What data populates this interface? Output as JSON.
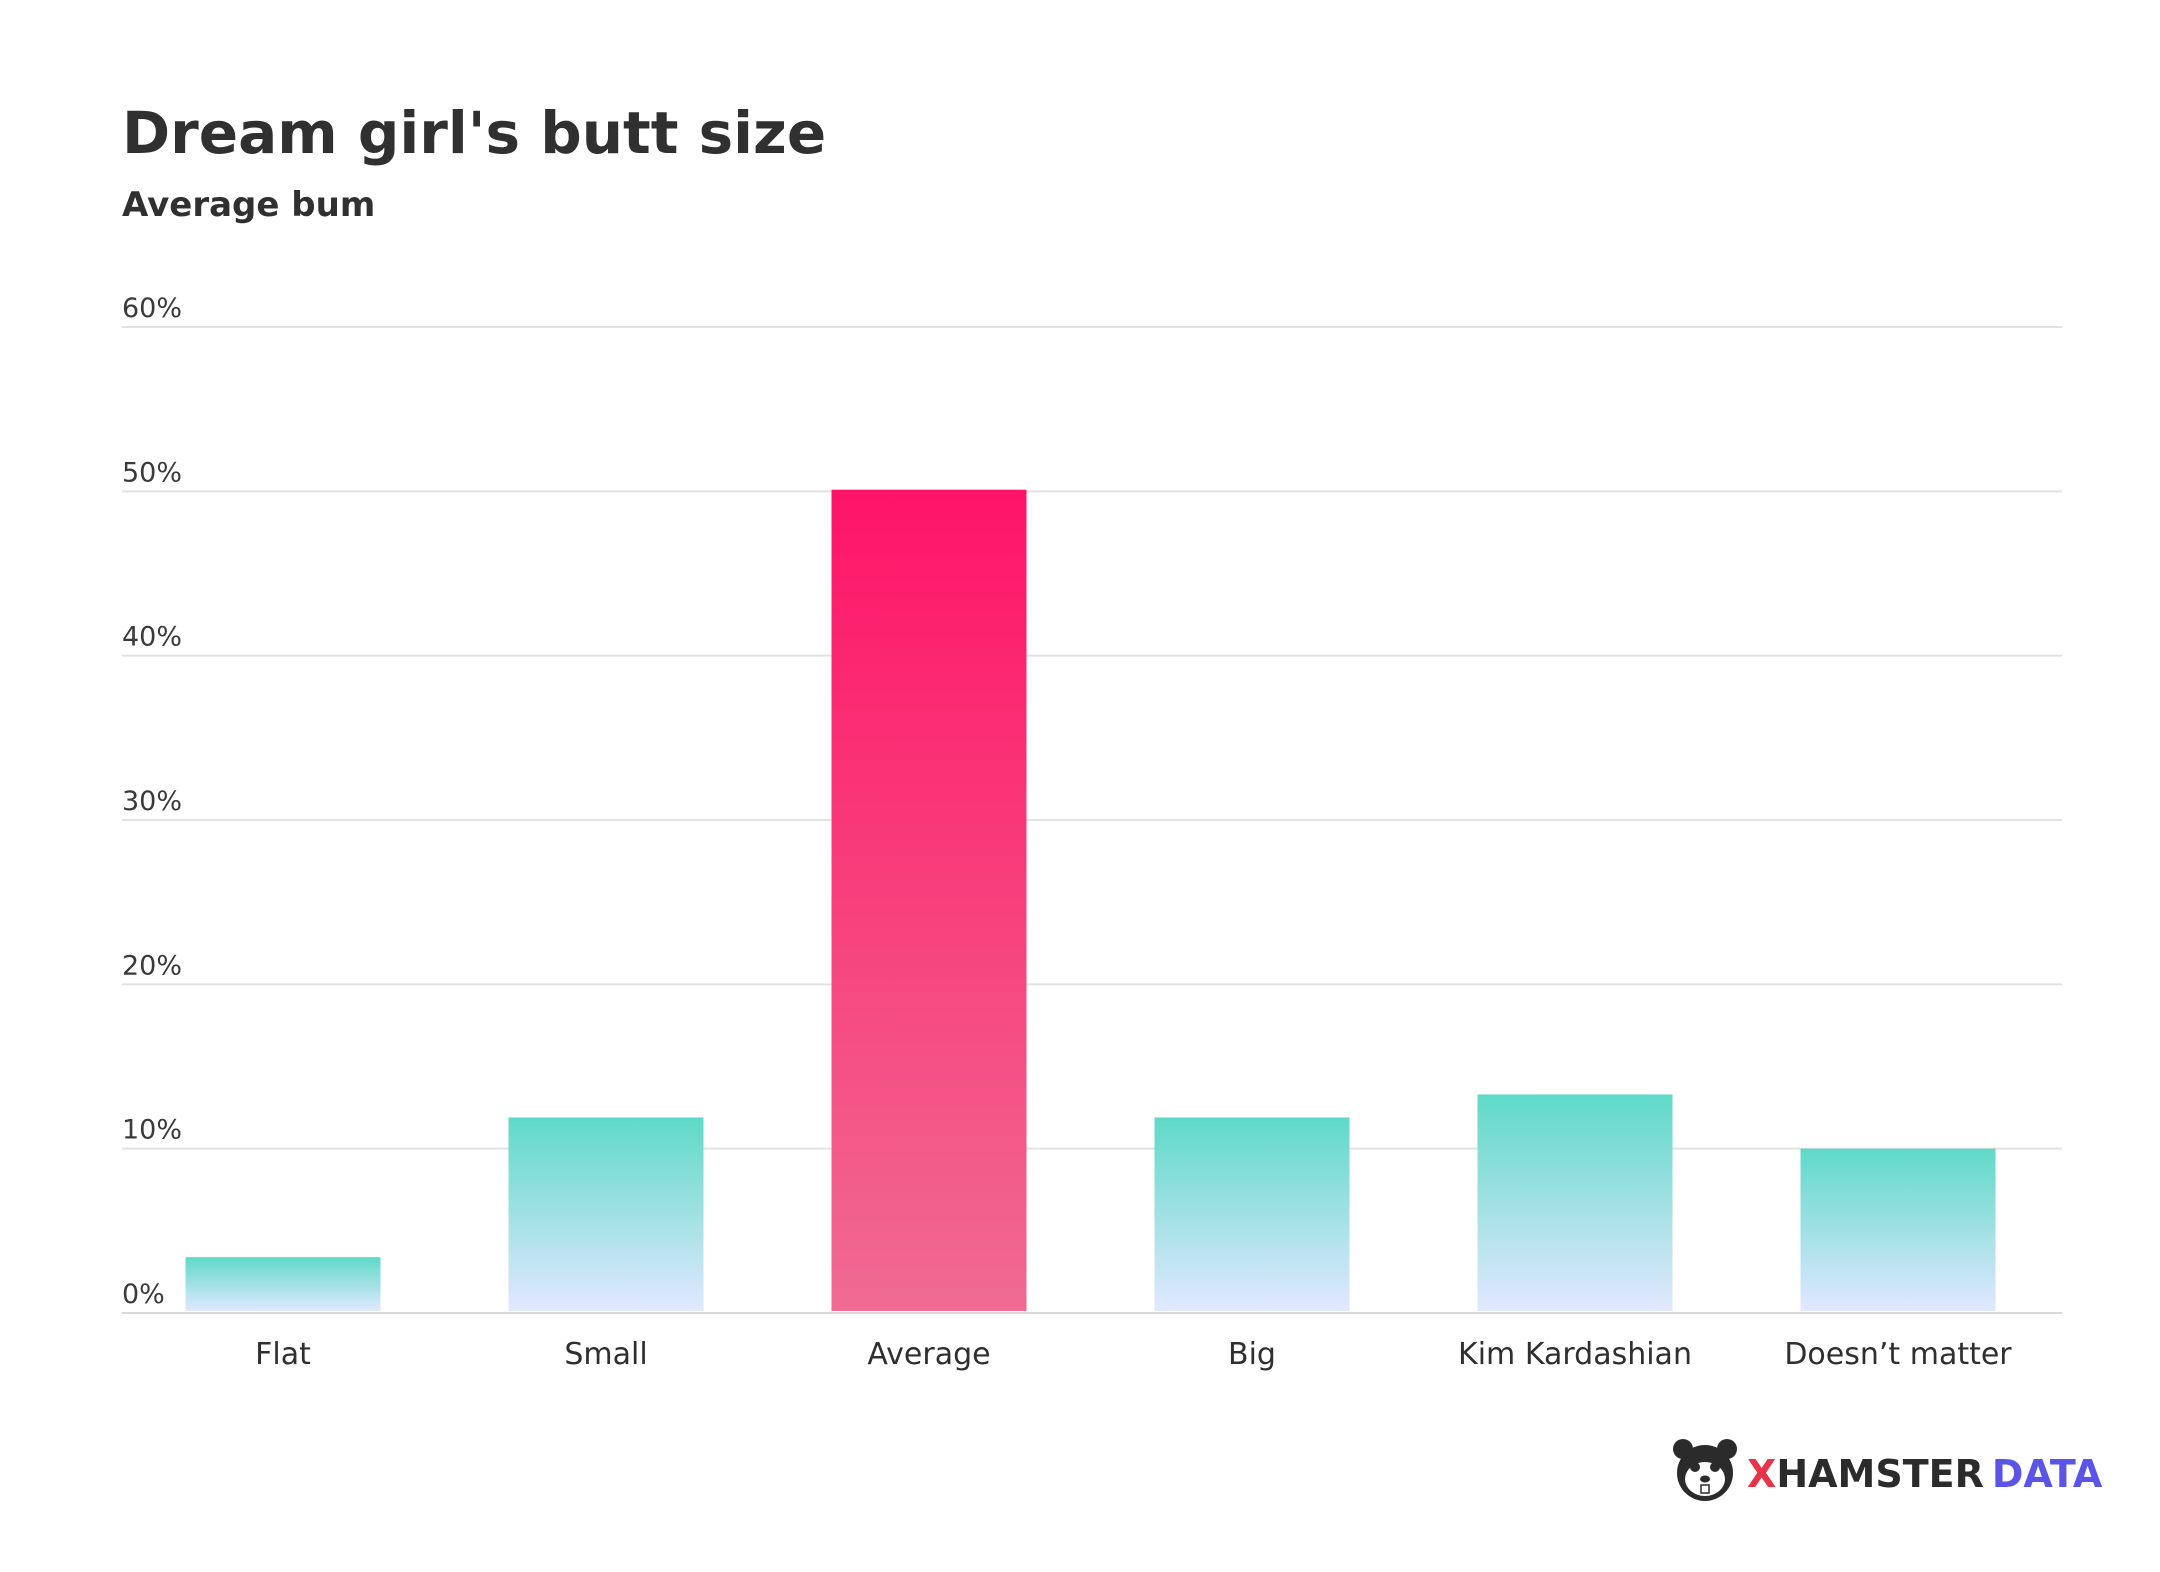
{
  "chart_data": {
    "type": "bar",
    "title": "Dream girl's butt size",
    "subtitle": "Average bum",
    "xlabel": "",
    "ylabel": "",
    "categories": [
      "Flat",
      "Small",
      "Average",
      "Big",
      "Kim Kardashian",
      "Doesn’t matter"
    ],
    "values": [
      3.4,
      11.9,
      50.1,
      11.9,
      13.3,
      10.0
    ],
    "highlight_index": 2,
    "ylim": [
      0,
      60
    ],
    "yticks": [
      0,
      10,
      20,
      30,
      40,
      50,
      60
    ],
    "ytick_labels": [
      "0%",
      "10%",
      "20%",
      "30%",
      "40%",
      "50%",
      "60%"
    ],
    "grid": true,
    "legend": "none"
  },
  "colors": {
    "highlight_top": "#ff1467",
    "highlight_bottom": "#f06b92",
    "normal_top": "#5fd9c8",
    "normal_bottom": "#e2e8ff",
    "grid": "#e2e2e2",
    "axis": "#d8d8d8"
  },
  "brand": {
    "x_letter": "X",
    "name_rest": "HAMSTER",
    "data_word": "DATA",
    "logo_icon": "hamster-head-icon"
  }
}
